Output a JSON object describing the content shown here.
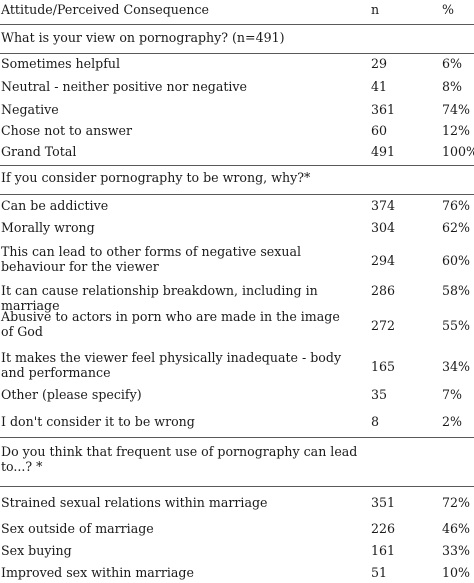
{
  "header": {
    "label": "Attitude/Perceived Consequence",
    "n": "n",
    "pct": "%"
  },
  "sections": [
    {
      "title": "What is your view on pornography? (n=491)",
      "rows": [
        {
          "label": "Sometimes helpful",
          "n": "29",
          "pct": "6%"
        },
        {
          "label": "Neutral - neither positive nor negative",
          "n": "41",
          "pct": "8%"
        },
        {
          "label": "Negative",
          "n": "361",
          "pct": "74%"
        },
        {
          "label": "Chose not to answer",
          "n": "60",
          "pct": "12%"
        },
        {
          "label": "Grand Total",
          "n": "491",
          "pct": "100%"
        }
      ]
    },
    {
      "title": "If you consider pornography to be wrong, why?*",
      "rows": [
        {
          "label": "Can be addictive",
          "n": "374",
          "pct": "76%"
        },
        {
          "label": "Morally wrong",
          "n": "304",
          "pct": "62%"
        },
        {
          "label": "This can lead to other forms of negative sexual behaviour for the viewer",
          "n": "294",
          "pct": "60%"
        },
        {
          "label": "It can cause relationship breakdown, including in marriage",
          "n": "286",
          "pct": "58%"
        },
        {
          "label": "Abusive to actors in porn who are made in the image of God",
          "n": "272",
          "pct": "55%"
        },
        {
          "label": "It makes the viewer feel physically inadequate - body and performance",
          "n": "165",
          "pct": "34%"
        },
        {
          "label": "Other (please specify)",
          "n": "35",
          "pct": "7%"
        },
        {
          "label": "I don't consider it to be wrong",
          "n": "8",
          "pct": "2%"
        }
      ]
    },
    {
      "title": "Do you think that frequent use of pornography can lead to...? *",
      "rows": [
        {
          "label": "Strained sexual relations within marriage",
          "n": "351",
          "pct": "72%"
        },
        {
          "label": "Sex outside of marriage",
          "n": "226",
          "pct": "46%"
        },
        {
          "label": "Sex buying",
          "n": "161",
          "pct": "33%"
        },
        {
          "label": "Improved sex within marriage",
          "n": "51",
          "pct": "10%"
        }
      ]
    }
  ]
}
